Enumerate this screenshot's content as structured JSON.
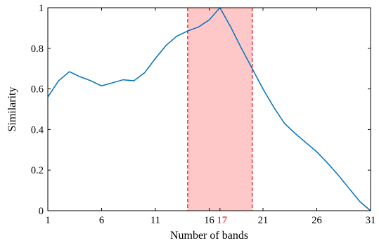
{
  "chart_data": {
    "type": "line",
    "xlabel": "Number of bands",
    "ylabel": "Similarity",
    "xlim": [
      1,
      31
    ],
    "ylim": [
      0,
      1
    ],
    "x_ticks": [
      1,
      6,
      11,
      16,
      21,
      26,
      31
    ],
    "y_ticks": [
      0,
      0.2,
      0.4,
      0.6,
      0.8,
      1
    ],
    "y_tick_labels": [
      "0",
      "0.2",
      "0.4",
      "0.6",
      "0.8",
      "1"
    ],
    "highlight": {
      "label": "17",
      "color": "#e8000b",
      "range": [
        14,
        20
      ],
      "x": 17
    },
    "grid": false,
    "series": [
      {
        "color": "#0072bd",
        "x": [
          1,
          2,
          3,
          4,
          5,
          6,
          7,
          8,
          9,
          10,
          11,
          12,
          13,
          14,
          15,
          16,
          17,
          18,
          19,
          20,
          21,
          22,
          23,
          24,
          25,
          26,
          27,
          28,
          29,
          30,
          31
        ],
        "values": [
          0.56,
          0.64,
          0.685,
          0.66,
          0.64,
          0.615,
          0.63,
          0.645,
          0.64,
          0.68,
          0.75,
          0.815,
          0.86,
          0.885,
          0.905,
          0.94,
          1.0,
          0.905,
          0.8,
          0.7,
          0.6,
          0.51,
          0.43,
          0.38,
          0.335,
          0.29,
          0.235,
          0.175,
          0.11,
          0.045,
          0.0
        ]
      }
    ]
  }
}
